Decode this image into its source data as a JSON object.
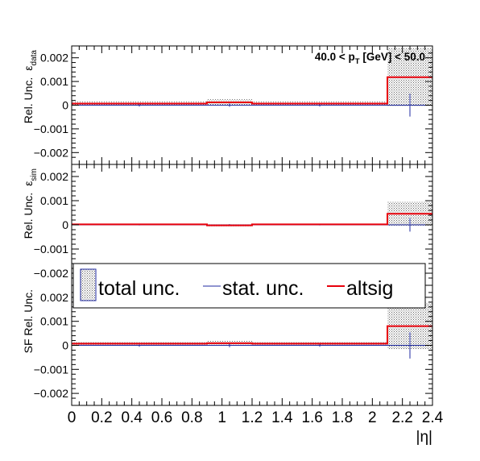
{
  "chart_data": {
    "type": "step",
    "x_label": "|η|",
    "x_range": [
      0,
      2.4
    ],
    "x_ticks": [
      "0",
      "0.2",
      "0.4",
      "0.6",
      "0.8",
      "1",
      "1.2",
      "1.4",
      "1.6",
      "1.8",
      "2",
      "2.2",
      "2.4"
    ],
    "bin_edges": [
      0,
      0.9,
      1.2,
      2.1,
      2.4
    ],
    "bin_centers": [
      0.45,
      1.05,
      1.65,
      2.25
    ],
    "annotation": {
      "pre": "40.0 < p",
      "sub": "T",
      "post": " [GeV] < 50.0"
    },
    "legend": [
      {
        "label": "total unc.",
        "kind": "hatched-box"
      },
      {
        "label": "stat. unc.",
        "kind": "line",
        "color": "#1f2aa0"
      },
      {
        "label": "altsig",
        "kind": "line",
        "color": "#e8000b"
      }
    ],
    "colors": {
      "total": "#666666",
      "stat": "#1f2aa0",
      "altsig": "#e8000b"
    },
    "panels": [
      {
        "ylabel_main": "Rel. Unc.",
        "ylabel_eps": "ε",
        "ylabel_sub": "data",
        "y_range": [
          -0.0025,
          0.0025
        ],
        "y_ticks": [
          "0.002",
          "0.001",
          "0",
          "−0.001",
          "−0.002"
        ],
        "altsig": [
          7e-05,
          0.00012,
          7e-05,
          0.00118
        ],
        "total_unc": [
          8e-05,
          0.00013,
          8e-05,
          0.00123
        ],
        "stat_unc": [
          6e-05,
          7e-05,
          6e-05,
          0.00048
        ]
      },
      {
        "ylabel_main": "Rel. Unc.",
        "ylabel_eps": "ε",
        "ylabel_sub": "sim",
        "y_range": [
          -0.0025,
          0.0025
        ],
        "y_ticks": [
          "0.002",
          "0.001",
          "0",
          "−0.001",
          "−0.002"
        ],
        "altsig": [
          2e-05,
          -2e-05,
          2e-05,
          0.00046
        ],
        "total_unc": [
          3e-05,
          4e-05,
          3e-05,
          0.0005
        ],
        "stat_unc": [
          2e-05,
          3e-05,
          2e-05,
          0.00028
        ]
      },
      {
        "ylabel_main": "SF Rel. Unc.",
        "ylabel_eps": "",
        "ylabel_sub": "",
        "y_range": [
          -0.0025,
          0.0025
        ],
        "y_ticks": [
          "0.002",
          "0.001",
          "0",
          "−0.001",
          "−0.002"
        ],
        "altsig": [
          7e-05,
          9e-05,
          7e-05,
          0.0008
        ],
        "total_unc": [
          8e-05,
          0.0001,
          8e-05,
          0.00097
        ],
        "stat_unc": [
          6e-05,
          8e-05,
          6e-05,
          0.00055
        ]
      }
    ]
  }
}
